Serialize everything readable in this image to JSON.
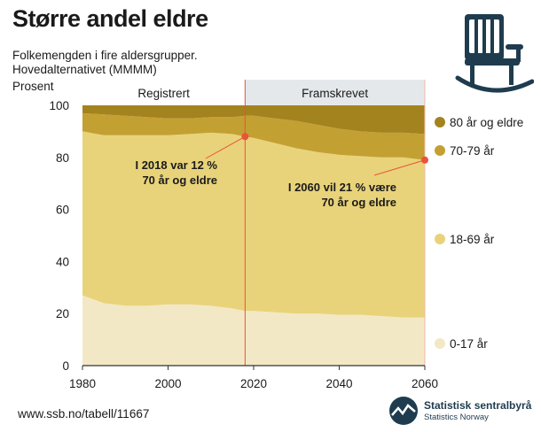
{
  "header": {
    "title": "Større andel eldre",
    "subtitle_line1": "Folkemengden i fire aldersgrupper.",
    "subtitle_line2": "Hovedalternativet (MMMM)",
    "y_unit": "Prosent"
  },
  "footer": {
    "source": "www.ssb.no/tabell/11667",
    "brand": "Statistisk sentralbyrå",
    "brand_sub": "Statistics Norway"
  },
  "colors": {
    "age_0_17": "#f3e8c5",
    "age_18_69": "#e8d37a",
    "age_70_79": "#c3a032",
    "age_80_plus": "#a3831e",
    "projection_band": "#e5e8ea",
    "marker": "#e8543a",
    "axis": "#333333"
  },
  "chart_data": {
    "type": "area",
    "stacked": true,
    "x": [
      1980,
      1985,
      1990,
      1995,
      2000,
      2005,
      2010,
      2015,
      2018,
      2020,
      2025,
      2030,
      2035,
      2040,
      2045,
      2050,
      2055,
      2060
    ],
    "series": [
      {
        "name": "0-17 år",
        "values": [
          27,
          24,
          23,
          23,
          23.5,
          23.5,
          23,
          22,
          21,
          21,
          20.5,
          20,
          20,
          19.5,
          19.5,
          19,
          18.5,
          18.5
        ]
      },
      {
        "name": "18-69 år",
        "values": [
          63,
          64.5,
          65.5,
          65.5,
          65,
          65.5,
          66.5,
          67,
          67,
          66.5,
          65,
          63.5,
          62,
          61.5,
          61,
          61,
          61.5,
          60.5
        ]
      },
      {
        "name": "70-79 år",
        "values": [
          7,
          8,
          7.5,
          7,
          6.5,
          6,
          6,
          6.5,
          8,
          8.5,
          9.5,
          10.5,
          10.5,
          10,
          9.5,
          9.5,
          9.5,
          10
        ]
      },
      {
        "name": "80 år og eldre",
        "values": [
          3,
          3.5,
          4,
          4.5,
          5,
          5,
          4.5,
          4.5,
          4,
          4,
          5,
          6,
          7.5,
          9,
          10,
          10.5,
          10.5,
          11
        ]
      }
    ],
    "xlim": [
      1980,
      2060
    ],
    "ylim": [
      0,
      100
    ],
    "xticks": [
      "1980",
      "2000",
      "2020",
      "2040",
      "2060"
    ],
    "yticks": [
      "0",
      "20",
      "40",
      "60",
      "80",
      "100"
    ],
    "periods": [
      {
        "label": "Registrert",
        "from": 1980,
        "to": 2018
      },
      {
        "label": "Framskrevet",
        "from": 2018,
        "to": 2060
      }
    ],
    "annotations": [
      {
        "year": 2018,
        "y": 88,
        "line1": "I 2018 var 12 %",
        "line2": "70 år og eldre"
      },
      {
        "year": 2060,
        "y": 79,
        "line1": "I 2060 vil 21 % være",
        "line2": "70 år og eldre"
      }
    ],
    "legend": [
      "80 år og eldre",
      "70-79 år",
      "18-69 år",
      "0-17 år"
    ]
  }
}
